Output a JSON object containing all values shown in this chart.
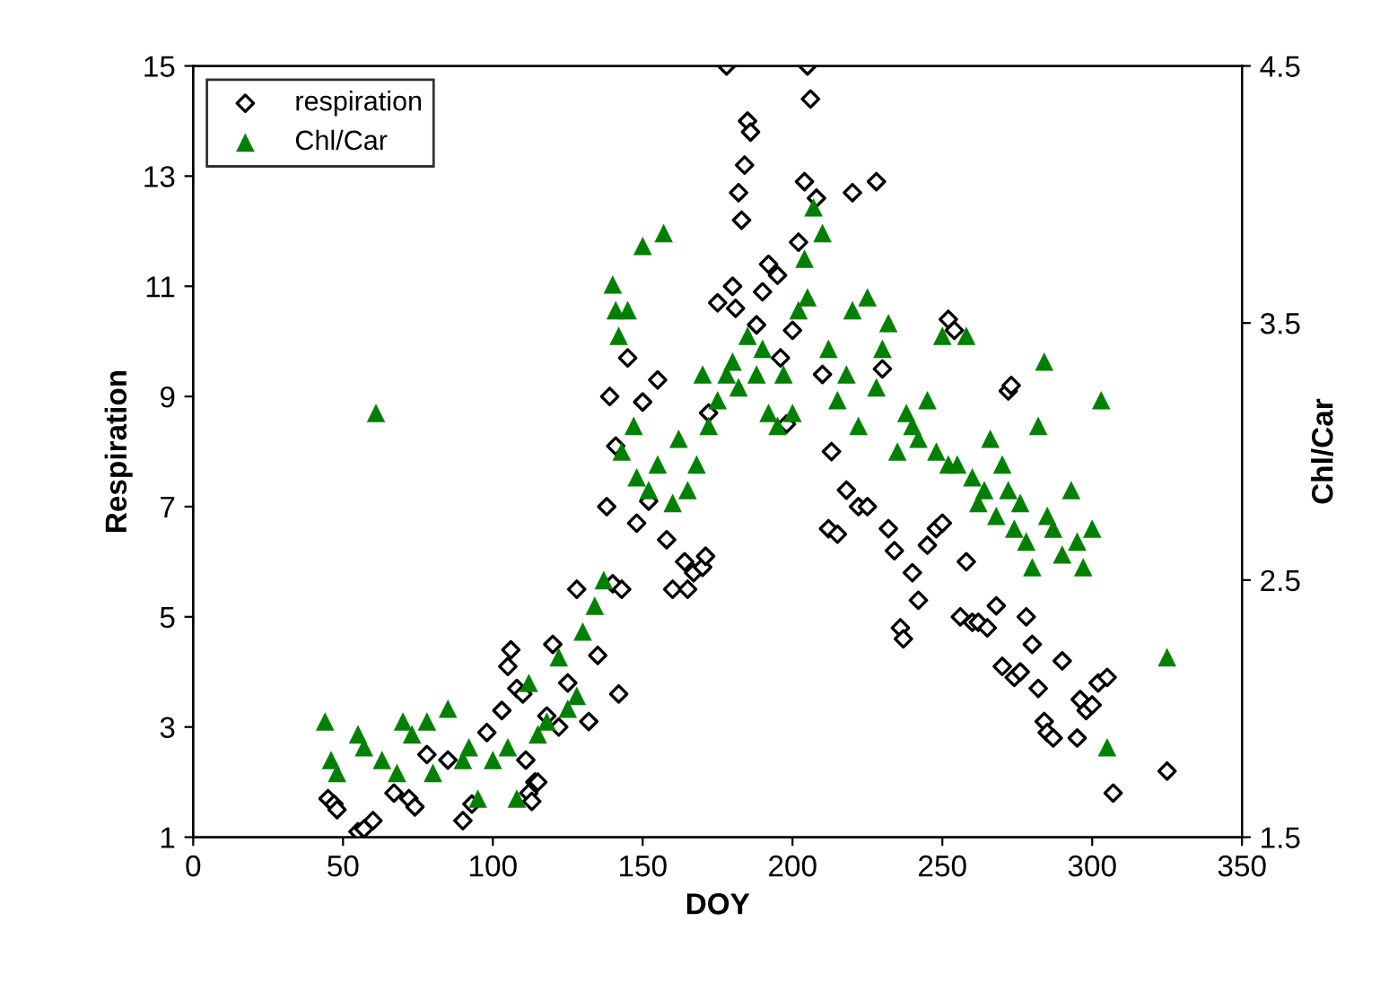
{
  "chart_data": {
    "type": "scatter",
    "xlabel": "DOY",
    "ylabel": "Respiration",
    "y2label": "Chl/Car",
    "xlim": [
      0,
      350
    ],
    "xticks": [
      0,
      50,
      100,
      150,
      200,
      250,
      300,
      350
    ],
    "ylim": [
      1,
      15
    ],
    "yticks": [
      1,
      3,
      5,
      7,
      9,
      11,
      13,
      15
    ],
    "y2lim": [
      1.5,
      4.5
    ],
    "y2ticks": [
      1.5,
      2.5,
      3.5,
      4.5
    ],
    "grid": false,
    "legend": "top left",
    "series": [
      {
        "name": "respiration",
        "color": "#000000",
        "marker": "diamond",
        "x": [
          45,
          47,
          48,
          55,
          57,
          60,
          67,
          72,
          74,
          78,
          85,
          90,
          93,
          98,
          103,
          105,
          106,
          108,
          110,
          111,
          112,
          113,
          114,
          115,
          118,
          120,
          122,
          125,
          128,
          132,
          135,
          138,
          139,
          140,
          141,
          142,
          143,
          145,
          148,
          150,
          152,
          155,
          158,
          160,
          164,
          165,
          167,
          170,
          171,
          172,
          175,
          178,
          180,
          181,
          182,
          183,
          184,
          185,
          186,
          188,
          190,
          192,
          195,
          196,
          198,
          200,
          202,
          204,
          205,
          206,
          208,
          210,
          212,
          213,
          215,
          218,
          220,
          222,
          225,
          228,
          230,
          232,
          234,
          236,
          237,
          240,
          242,
          245,
          248,
          250,
          252,
          254,
          256,
          258,
          260,
          262,
          265,
          268,
          270,
          272,
          273,
          274,
          276,
          278,
          280,
          282,
          284,
          285,
          287,
          290,
          295,
          296,
          298,
          300,
          302,
          305,
          307,
          325
        ],
        "values": [
          1.7,
          1.6,
          1.5,
          1.1,
          1.15,
          1.3,
          1.8,
          1.7,
          1.55,
          2.5,
          2.4,
          1.3,
          1.6,
          2.9,
          3.3,
          4.1,
          4.4,
          3.7,
          3.6,
          2.4,
          1.8,
          1.65,
          2.0,
          2.0,
          3.2,
          4.5,
          3.0,
          3.8,
          5.5,
          3.1,
          4.3,
          7.0,
          9.0,
          5.6,
          8.1,
          3.6,
          5.5,
          9.7,
          6.7,
          8.9,
          7.1,
          9.3,
          6.4,
          5.5,
          6.0,
          5.5,
          5.8,
          5.9,
          6.1,
          8.7,
          10.7,
          15.0,
          11.0,
          10.6,
          12.7,
          12.2,
          13.2,
          14.0,
          13.8,
          10.3,
          10.9,
          11.4,
          11.2,
          9.7,
          8.5,
          10.2,
          11.8,
          12.9,
          15.0,
          14.4,
          12.6,
          9.4,
          6.6,
          8.0,
          6.5,
          7.3,
          12.7,
          7.0,
          7.0,
          12.9,
          9.5,
          6.6,
          6.2,
          4.8,
          4.6,
          5.8,
          5.3,
          6.3,
          6.6,
          6.7,
          10.4,
          10.2,
          5.0,
          6.0,
          4.9,
          4.9,
          4.8,
          5.2,
          4.1,
          9.1,
          9.2,
          3.9,
          4.0,
          5.0,
          4.5,
          3.7,
          3.1,
          2.9,
          2.8,
          4.2,
          2.8,
          3.5,
          3.3,
          3.4,
          3.8,
          3.9,
          1.8,
          2.2
        ]
      },
      {
        "name": "Chl/Car",
        "color": "#008000",
        "marker": "triangle",
        "axis": "y2",
        "x": [
          44,
          46,
          48,
          55,
          57,
          61,
          63,
          68,
          70,
          73,
          78,
          80,
          85,
          90,
          92,
          95,
          100,
          105,
          108,
          112,
          115,
          118,
          122,
          125,
          128,
          130,
          134,
          137,
          140,
          141,
          142,
          143,
          145,
          147,
          148,
          150,
          152,
          155,
          157,
          160,
          162,
          165,
          168,
          170,
          172,
          175,
          178,
          180,
          182,
          185,
          188,
          190,
          192,
          195,
          197,
          200,
          202,
          204,
          205,
          207,
          210,
          212,
          215,
          218,
          220,
          222,
          225,
          228,
          230,
          232,
          235,
          238,
          240,
          242,
          245,
          248,
          250,
          252,
          255,
          258,
          260,
          262,
          264,
          266,
          268,
          270,
          272,
          274,
          276,
          278,
          280,
          282,
          284,
          285,
          287,
          290,
          293,
          295,
          297,
          300,
          303,
          305,
          325
        ],
        "values": [
          1.95,
          1.8,
          1.75,
          1.9,
          1.85,
          3.15,
          1.8,
          1.75,
          1.95,
          1.9,
          1.95,
          1.75,
          2.0,
          1.8,
          1.85,
          1.65,
          1.8,
          1.85,
          1.65,
          2.1,
          1.9,
          1.95,
          2.2,
          2.0,
          2.05,
          2.3,
          2.4,
          2.5,
          3.65,
          3.55,
          3.45,
          3.0,
          3.55,
          3.1,
          2.9,
          3.8,
          2.85,
          2.95,
          3.85,
          2.8,
          3.05,
          2.85,
          2.95,
          3.3,
          3.1,
          3.2,
          3.3,
          3.35,
          3.25,
          3.45,
          3.3,
          3.4,
          3.15,
          3.1,
          3.3,
          3.15,
          3.55,
          3.75,
          3.6,
          3.95,
          3.85,
          3.4,
          3.2,
          3.3,
          3.55,
          3.1,
          3.6,
          3.25,
          3.4,
          3.5,
          3.0,
          3.15,
          3.1,
          3.05,
          3.2,
          3.0,
          3.45,
          2.95,
          2.95,
          3.45,
          2.9,
          2.8,
          2.85,
          3.05,
          2.75,
          2.95,
          2.85,
          2.7,
          2.8,
          2.65,
          2.55,
          3.1,
          3.35,
          2.75,
          2.7,
          2.6,
          2.85,
          2.65,
          2.55,
          2.7,
          3.2,
          1.85,
          2.2
        ]
      }
    ]
  }
}
